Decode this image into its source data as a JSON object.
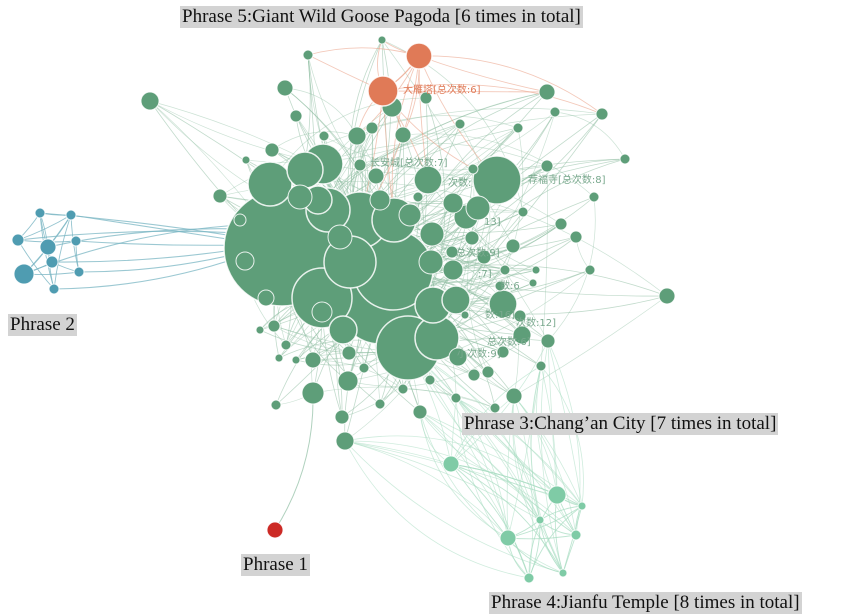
{
  "captions": {
    "phrase5": "Phrase 5:Giant Wild Goose Pagoda [6 times in total]",
    "phrase2": "Phrase 2",
    "phrase3": "Phrase 3:Chang’an City [7 times in total]",
    "phrase1": "Phrase 1",
    "phrase4": "Phrase 4:Jianfu Temple [8 times in total]"
  },
  "node_labels": {
    "dayanta": "大雁塔[总次数:6]",
    "jianfusi": "荐福寺[总次数:8]",
    "changan": "长安城[总次数:7]",
    "l_cishu": "次数:",
    "l_9a": "总次数:9]",
    "l_13": "13]",
    "l_7": ":7]",
    "l_6a": "数:6",
    "l_16": "数:16]",
    "l_12": "次数:12]",
    "l_6b": "总次数:6]",
    "l_9b": "小次数:9]"
  },
  "colors": {
    "main": "#5e9e79",
    "main_edge": "#8fbea2",
    "phrase2": "#4f9cb1",
    "phrase2_edge": "#79b5c3",
    "phrase5": "#e07a57",
    "phrase5_edge": "#eba48a",
    "phrase4": "#7fcba6",
    "phrase4_edge": "#a8dcc1",
    "phrase1": "#cc2a25",
    "label_green": "#7aa98e",
    "label_orange": "#e07a57"
  }
}
